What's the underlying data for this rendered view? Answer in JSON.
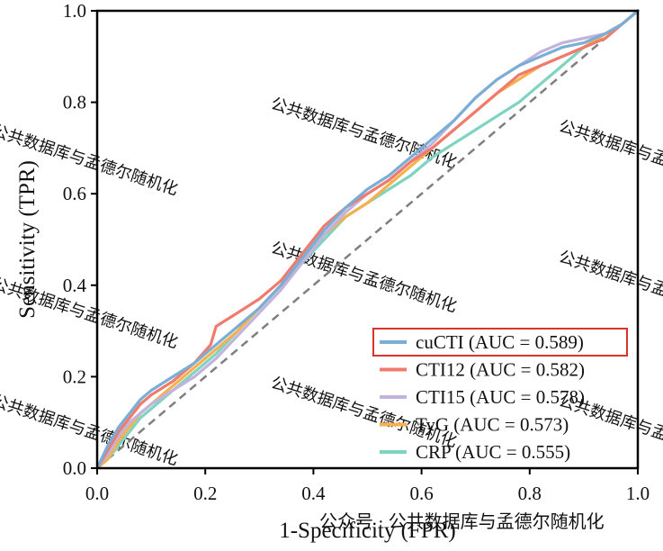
{
  "chart_data": {
    "type": "line",
    "xlabel": "1-Specificity (FPR)",
    "ylabel": "Sensitivity (TPR)",
    "xlim": [
      0.0,
      1.0
    ],
    "ylim": [
      0.0,
      1.0
    ],
    "x_ticks": [
      "0.0",
      "0.2",
      "0.4",
      "0.6",
      "0.8",
      "1.0"
    ],
    "y_ticks": [
      "0.0",
      "0.2",
      "0.4",
      "0.6",
      "0.8",
      "1.0"
    ],
    "grid": false,
    "legend_position": "bottom-right",
    "highlighted_series": "cuCTI (AUC = 0.589)",
    "reference_line": {
      "x": [
        0,
        1
      ],
      "y": [
        0,
        1
      ],
      "style": "dashed",
      "color": "#7f7f7f"
    },
    "series": [
      {
        "name": "cuCTI (AUC = 0.589)",
        "color": "#7aaed6",
        "x": [
          0,
          0.02,
          0.04,
          0.06,
          0.08,
          0.1,
          0.14,
          0.18,
          0.22,
          0.26,
          0.3,
          0.34,
          0.38,
          0.42,
          0.46,
          0.5,
          0.54,
          0.58,
          0.62,
          0.66,
          0.7,
          0.74,
          0.78,
          0.82,
          0.86,
          0.9,
          0.94,
          0.97,
          1.0
        ],
        "y": [
          0,
          0.05,
          0.09,
          0.12,
          0.15,
          0.17,
          0.2,
          0.23,
          0.27,
          0.31,
          0.35,
          0.4,
          0.46,
          0.52,
          0.57,
          0.61,
          0.64,
          0.68,
          0.72,
          0.76,
          0.81,
          0.85,
          0.88,
          0.9,
          0.92,
          0.93,
          0.95,
          0.97,
          1.0
        ]
      },
      {
        "name": "CTI12 (AUC = 0.582)",
        "color": "#f07b6c",
        "x": [
          0,
          0.02,
          0.04,
          0.06,
          0.08,
          0.1,
          0.14,
          0.18,
          0.21,
          0.22,
          0.26,
          0.3,
          0.34,
          0.38,
          0.42,
          0.46,
          0.5,
          0.54,
          0.58,
          0.62,
          0.66,
          0.7,
          0.74,
          0.78,
          0.82,
          0.86,
          0.9,
          0.94,
          0.97,
          1.0
        ],
        "y": [
          0,
          0.04,
          0.08,
          0.11,
          0.14,
          0.16,
          0.19,
          0.23,
          0.27,
          0.31,
          0.34,
          0.37,
          0.41,
          0.47,
          0.53,
          0.57,
          0.6,
          0.63,
          0.67,
          0.7,
          0.74,
          0.78,
          0.82,
          0.86,
          0.88,
          0.9,
          0.92,
          0.94,
          0.97,
          1.0
        ]
      },
      {
        "name": "CTI15 (AUC = 0.578)",
        "color": "#c0b4dc",
        "x": [
          0,
          0.02,
          0.04,
          0.06,
          0.08,
          0.1,
          0.14,
          0.18,
          0.22,
          0.26,
          0.3,
          0.34,
          0.38,
          0.42,
          0.46,
          0.5,
          0.54,
          0.58,
          0.62,
          0.66,
          0.7,
          0.74,
          0.78,
          0.82,
          0.86,
          0.9,
          0.94,
          0.97,
          1.0
        ],
        "y": [
          0,
          0.03,
          0.07,
          0.1,
          0.12,
          0.14,
          0.17,
          0.2,
          0.24,
          0.29,
          0.34,
          0.39,
          0.45,
          0.51,
          0.56,
          0.6,
          0.63,
          0.67,
          0.71,
          0.76,
          0.81,
          0.85,
          0.88,
          0.91,
          0.93,
          0.94,
          0.95,
          0.97,
          1.0
        ]
      },
      {
        "name": "TyG (AUC = 0.573)",
        "color": "#f6b04e",
        "x": [
          0,
          0.02,
          0.04,
          0.06,
          0.08,
          0.1,
          0.14,
          0.18,
          0.22,
          0.26,
          0.3,
          0.34,
          0.38,
          0.42,
          0.46,
          0.5,
          0.54,
          0.58,
          0.62,
          0.66,
          0.7,
          0.74,
          0.78,
          0.82,
          0.86,
          0.9,
          0.94,
          0.97,
          1.0
        ],
        "y": [
          0,
          0.02,
          0.06,
          0.09,
          0.12,
          0.14,
          0.18,
          0.22,
          0.26,
          0.3,
          0.35,
          0.4,
          0.46,
          0.51,
          0.55,
          0.58,
          0.62,
          0.66,
          0.7,
          0.74,
          0.78,
          0.82,
          0.85,
          0.88,
          0.9,
          0.92,
          0.95,
          0.97,
          1.0
        ]
      },
      {
        "name": "CRP (AUC = 0.555)",
        "color": "#7ed4c0",
        "x": [
          0,
          0.02,
          0.04,
          0.06,
          0.08,
          0.1,
          0.14,
          0.18,
          0.22,
          0.26,
          0.3,
          0.34,
          0.38,
          0.42,
          0.46,
          0.5,
          0.54,
          0.58,
          0.62,
          0.66,
          0.7,
          0.74,
          0.78,
          0.82,
          0.86,
          0.9,
          0.94,
          0.97,
          1.0
        ],
        "y": [
          0,
          0.02,
          0.05,
          0.08,
          0.11,
          0.13,
          0.17,
          0.21,
          0.25,
          0.3,
          0.35,
          0.4,
          0.45,
          0.5,
          0.55,
          0.58,
          0.61,
          0.64,
          0.68,
          0.71,
          0.74,
          0.77,
          0.8,
          0.84,
          0.88,
          0.92,
          0.95,
          0.97,
          1.0
        ]
      }
    ]
  },
  "watermark": {
    "text": "公共数据库与孟德尔随机化",
    "footer": "公众号 · 公共数据库与孟德尔随机化"
  }
}
